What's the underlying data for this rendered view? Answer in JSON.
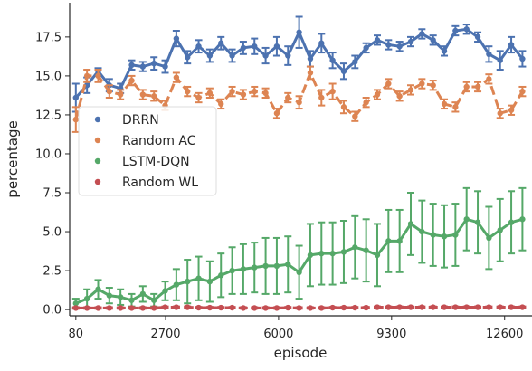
{
  "chart_data": {
    "type": "line",
    "title": "",
    "xlabel": "episode",
    "ylabel": "percentage",
    "xlim": [
      -100,
      13400
    ],
    "ylim": [
      -0.4,
      19.7
    ],
    "xticks": [
      80,
      2700,
      6000,
      9300,
      12600
    ],
    "xtick_labels": [
      "80",
      "2700",
      "6000",
      "9300",
      "12600"
    ],
    "yticks": [
      0.0,
      2.5,
      5.0,
      7.5,
      10.0,
      12.5,
      15.0,
      17.5
    ],
    "ytick_labels": [
      "0.0",
      "2.5",
      "5.0",
      "7.5",
      "10.0",
      "12.5",
      "15.0",
      "17.5"
    ],
    "grid": false,
    "legend_position": "center-left",
    "x": [
      80,
      406,
      732,
      1058,
      1384,
      1710,
      2036,
      2362,
      2688,
      3014,
      3340,
      3666,
      3992,
      4318,
      4644,
      4970,
      5296,
      5622,
      5948,
      6274,
      6600,
      6926,
      7252,
      7578,
      7904,
      8230,
      8556,
      8882,
      9208,
      9534,
      9860,
      10186,
      10512,
      10838,
      11164,
      11490,
      11816,
      12142,
      12468,
      12794,
      13120
    ],
    "series": [
      {
        "name": "DRRN",
        "color": "#4c72b0",
        "style": "solid",
        "values": [
          13.6,
          14.4,
          15.3,
          14.4,
          14.2,
          15.7,
          15.6,
          15.8,
          15.6,
          17.4,
          16.2,
          16.9,
          16.3,
          17.1,
          16.3,
          16.8,
          16.9,
          16.3,
          16.9,
          16.3,
          17.8,
          16.1,
          17.1,
          16.0,
          15.3,
          15.9,
          16.8,
          17.3,
          17.0,
          16.9,
          17.2,
          17.7,
          17.3,
          16.6,
          17.9,
          18.0,
          17.5,
          16.4,
          16.0,
          17.0,
          16.1
        ],
        "err": [
          0.9,
          0.5,
          0.2,
          0.4,
          0.3,
          0.3,
          0.3,
          0.4,
          0.4,
          0.5,
          0.4,
          0.4,
          0.4,
          0.4,
          0.4,
          0.4,
          0.5,
          0.5,
          0.6,
          0.6,
          1.0,
          0.5,
          0.6,
          0.5,
          0.5,
          0.4,
          0.3,
          0.3,
          0.3,
          0.3,
          0.3,
          0.3,
          0.3,
          0.3,
          0.3,
          0.3,
          0.3,
          0.5,
          0.6,
          0.5,
          0.5
        ]
      },
      {
        "name": "Random AC",
        "color": "#dd8452",
        "style": "dashed",
        "values": [
          12.2,
          15.0,
          15.0,
          14.0,
          13.8,
          14.7,
          13.8,
          13.7,
          13.1,
          14.9,
          14.0,
          13.6,
          13.9,
          13.2,
          14.0,
          13.8,
          14.0,
          13.9,
          12.6,
          13.6,
          13.3,
          15.2,
          13.6,
          14.0,
          13.0,
          12.4,
          13.3,
          13.8,
          14.5,
          13.7,
          14.1,
          14.5,
          14.4,
          13.2,
          13.0,
          14.3,
          14.3,
          14.8,
          12.6,
          12.8,
          14.0
        ],
        "err": [
          0.8,
          0.4,
          0.4,
          0.4,
          0.3,
          0.3,
          0.3,
          0.3,
          0.3,
          0.3,
          0.3,
          0.3,
          0.3,
          0.3,
          0.3,
          0.3,
          0.3,
          0.3,
          0.3,
          0.3,
          0.4,
          0.4,
          0.5,
          0.5,
          0.4,
          0.3,
          0.3,
          0.3,
          0.3,
          0.3,
          0.3,
          0.3,
          0.3,
          0.3,
          0.3,
          0.3,
          0.3,
          0.3,
          0.3,
          0.3,
          0.3
        ]
      },
      {
        "name": "LSTM-DQN",
        "color": "#55a868",
        "style": "solid",
        "values": [
          0.4,
          0.7,
          1.3,
          0.9,
          0.8,
          0.6,
          1.0,
          0.6,
          1.2,
          1.6,
          1.8,
          2.0,
          1.8,
          2.2,
          2.5,
          2.6,
          2.7,
          2.8,
          2.8,
          2.9,
          2.4,
          3.5,
          3.6,
          3.6,
          3.7,
          4.0,
          3.8,
          3.5,
          4.4,
          4.4,
          5.5,
          5.0,
          4.8,
          4.7,
          4.8,
          5.8,
          5.6,
          4.6,
          5.1,
          5.6,
          5.8
        ],
        "err": [
          0.3,
          0.6,
          0.6,
          0.5,
          0.5,
          0.4,
          0.5,
          0.4,
          0.6,
          1.0,
          1.4,
          1.4,
          1.3,
          1.4,
          1.5,
          1.6,
          1.6,
          1.8,
          1.8,
          1.8,
          1.7,
          2.0,
          2.0,
          2.0,
          2.0,
          2.0,
          2.0,
          2.0,
          2.0,
          2.0,
          2.0,
          2.0,
          2.0,
          2.0,
          2.0,
          2.0,
          2.0,
          2.0,
          2.0,
          2.0,
          2.0
        ]
      },
      {
        "name": "Random WL",
        "color": "#c44e52",
        "style": "dashed",
        "values": [
          0.1,
          0.1,
          0.1,
          0.1,
          0.1,
          0.1,
          0.1,
          0.1,
          0.15,
          0.15,
          0.15,
          0.12,
          0.12,
          0.12,
          0.12,
          0.1,
          0.1,
          0.1,
          0.1,
          0.12,
          0.1,
          0.1,
          0.1,
          0.12,
          0.12,
          0.12,
          0.12,
          0.15,
          0.15,
          0.15,
          0.15,
          0.15,
          0.15,
          0.15,
          0.15,
          0.15,
          0.15,
          0.15,
          0.15,
          0.15,
          0.15
        ],
        "err": [
          0.05,
          0.05,
          0.05,
          0.05,
          0.05,
          0.05,
          0.05,
          0.05,
          0.05,
          0.05,
          0.05,
          0.05,
          0.05,
          0.05,
          0.05,
          0.05,
          0.05,
          0.05,
          0.05,
          0.05,
          0.05,
          0.05,
          0.05,
          0.05,
          0.05,
          0.05,
          0.05,
          0.05,
          0.05,
          0.05,
          0.05,
          0.05,
          0.05,
          0.05,
          0.05,
          0.05,
          0.05,
          0.05,
          0.05,
          0.05,
          0.05
        ]
      }
    ]
  }
}
